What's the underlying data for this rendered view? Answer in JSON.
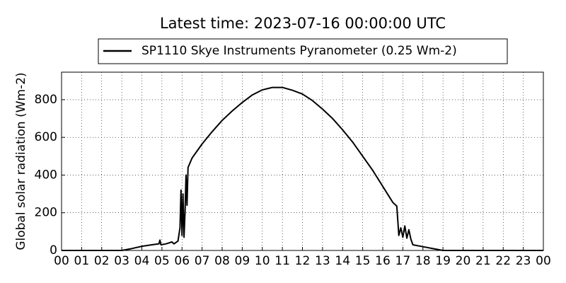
{
  "chart_data": {
    "type": "line",
    "title": "Latest time: 2023-07-16 00:00:00 UTC",
    "y_label": "Global solar radiation (Wm-2)",
    "grid": true,
    "legend_position": "top",
    "x": [
      0,
      3,
      3.5,
      4,
      4.5,
      4.85,
      4.9,
      4.95,
      5.2,
      5.5,
      5.6,
      5.8,
      5.9,
      5.95,
      6.0,
      6.05,
      6.1,
      6.15,
      6.2,
      6.25,
      6.3,
      6.5,
      7,
      7.5,
      8,
      8.5,
      9,
      9.5,
      10,
      10.5,
      11,
      11.5,
      12,
      12.5,
      13,
      13.5,
      14,
      14.5,
      15,
      15.5,
      16,
      16.5,
      16.7,
      16.8,
      16.9,
      17,
      17.1,
      17.2,
      17.3,
      17.4,
      17.5,
      18,
      18.5,
      19,
      24
    ],
    "series": [
      {
        "name": "SP1110 Skye Instruments Pyranometer (0.25 Wm-2)",
        "color": "#000000",
        "values": [
          0,
          0,
          10,
          22,
          30,
          35,
          55,
          30,
          35,
          45,
          35,
          50,
          120,
          320,
          80,
          300,
          70,
          200,
          400,
          240,
          440,
          490,
          565,
          630,
          690,
          740,
          785,
          825,
          852,
          865,
          865,
          850,
          830,
          795,
          750,
          700,
          640,
          575,
          500,
          425,
          340,
          255,
          235,
          80,
          120,
          70,
          130,
          65,
          110,
          60,
          30,
          20,
          10,
          0,
          0
        ]
      }
    ],
    "xlim": [
      0,
      24
    ],
    "xticks": [
      {
        "value": 0,
        "label": "00"
      },
      {
        "value": 1,
        "label": "01"
      },
      {
        "value": 2,
        "label": "02"
      },
      {
        "value": 3,
        "label": "03"
      },
      {
        "value": 4,
        "label": "04"
      },
      {
        "value": 5,
        "label": "05"
      },
      {
        "value": 6,
        "label": "06"
      },
      {
        "value": 7,
        "label": "07"
      },
      {
        "value": 8,
        "label": "08"
      },
      {
        "value": 9,
        "label": "09"
      },
      {
        "value": 10,
        "label": "10"
      },
      {
        "value": 11,
        "label": "11"
      },
      {
        "value": 12,
        "label": "12"
      },
      {
        "value": 13,
        "label": "13"
      },
      {
        "value": 14,
        "label": "14"
      },
      {
        "value": 15,
        "label": "15"
      },
      {
        "value": 16,
        "label": "16"
      },
      {
        "value": 17,
        "label": "17"
      },
      {
        "value": 18,
        "label": "18"
      },
      {
        "value": 19,
        "label": "19"
      },
      {
        "value": 20,
        "label": "20"
      },
      {
        "value": 21,
        "label": "21"
      },
      {
        "value": 22,
        "label": "22"
      },
      {
        "value": 23,
        "label": "23"
      },
      {
        "value": 24,
        "label": "00"
      }
    ],
    "ylim": [
      0,
      946
    ],
    "yticks": [
      0,
      200,
      400,
      600,
      800
    ]
  }
}
